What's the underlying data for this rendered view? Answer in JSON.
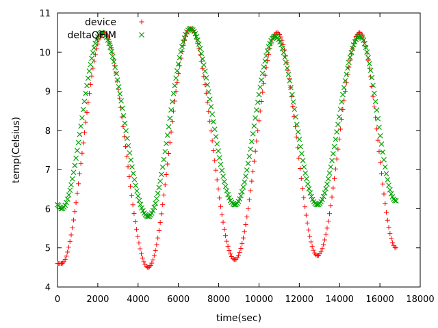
{
  "chart_data": {
    "type": "scatter",
    "title": "",
    "xlabel": "time(sec)",
    "ylabel": "temp(Celsius)",
    "xlim": [
      0,
      18000
    ],
    "ylim": [
      4,
      11
    ],
    "xticks": [
      0,
      2000,
      4000,
      6000,
      8000,
      10000,
      12000,
      14000,
      16000,
      18000
    ],
    "yticks": [
      4,
      5,
      6,
      7,
      8,
      9,
      10,
      11
    ],
    "x_tick_labels": [
      "0",
      "2000",
      "4000",
      "6000",
      "8000",
      "10000",
      "12000",
      "14000",
      "16000",
      "18000"
    ],
    "y_tick_labels": [
      "4",
      "5",
      "6",
      "7",
      "8",
      "9",
      "10",
      "11"
    ],
    "grid": false,
    "legend_position": "top-left",
    "series": [
      {
        "name": "device",
        "marker": "+",
        "color": "#ff0000",
        "anchors": [
          [
            0,
            4.6
          ],
          [
            200,
            4.6
          ],
          [
            2300,
            10.5
          ],
          [
            4500,
            4.5
          ],
          [
            6600,
            10.6
          ],
          [
            8800,
            4.7
          ],
          [
            10900,
            10.5
          ],
          [
            12900,
            4.8
          ],
          [
            15000,
            10.5
          ],
          [
            16800,
            5.0
          ]
        ]
      },
      {
        "name": "deltaQEIM",
        "marker": "x",
        "color": "#00a000",
        "anchors": [
          [
            0,
            6.1
          ],
          [
            200,
            6.0
          ],
          [
            2200,
            10.5
          ],
          [
            4500,
            5.8
          ],
          [
            6600,
            10.6
          ],
          [
            8800,
            6.1
          ],
          [
            10800,
            10.4
          ],
          [
            12900,
            6.1
          ],
          [
            15000,
            10.4
          ],
          [
            16800,
            6.2
          ]
        ]
      }
    ]
  }
}
